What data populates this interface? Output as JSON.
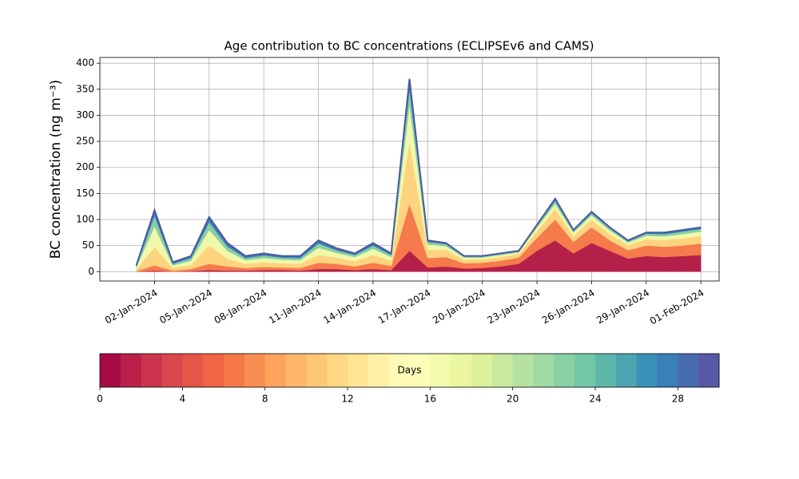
{
  "chart_data": {
    "type": "stacked-area",
    "title": "Age contribution to BC concentrations (ECLIPSEv6 and CAMS)",
    "ylabel": "BC concentration (ng m⁻³)",
    "x": [
      "01-Jan-2024",
      "02-Jan-2024",
      "03-Jan-2024",
      "04-Jan-2024",
      "05-Jan-2024",
      "06-Jan-2024",
      "07-Jan-2024",
      "08-Jan-2024",
      "09-Jan-2024",
      "10-Jan-2024",
      "11-Jan-2024",
      "12-Jan-2024",
      "13-Jan-2024",
      "14-Jan-2024",
      "15-Jan-2024",
      "16-Jan-2024",
      "17-Jan-2024",
      "18-Jan-2024",
      "19-Jan-2024",
      "20-Jan-2024",
      "21-Jan-2024",
      "22-Jan-2024",
      "23-Jan-2024",
      "24-Jan-2024",
      "25-Jan-2024",
      "26-Jan-2024",
      "27-Jan-2024",
      "28-Jan-2024",
      "29-Jan-2024",
      "30-Jan-2024",
      "31-Jan-2024",
      "01-Feb-2024"
    ],
    "series": [
      {
        "color": "#b5204a",
        "values": [
          0,
          2,
          0,
          1,
          3,
          2,
          2,
          3,
          3,
          2,
          5,
          5,
          3,
          5,
          3,
          40,
          8,
          10,
          6,
          7,
          10,
          15,
          40,
          60,
          35,
          55,
          40,
          25,
          30,
          28,
          30,
          32
        ]
      },
      {
        "color": "#f57a4c",
        "values": [
          1,
          10,
          2,
          4,
          12,
          8,
          5,
          6,
          5,
          5,
          12,
          10,
          7,
          12,
          8,
          90,
          18,
          18,
          10,
          10,
          11,
          12,
          25,
          40,
          22,
          30,
          20,
          16,
          20,
          20,
          20,
          22
        ]
      },
      {
        "color": "#fed37f",
        "values": [
          3,
          35,
          5,
          8,
          35,
          15,
          8,
          9,
          8,
          8,
          15,
          12,
          10,
          15,
          10,
          120,
          16,
          14,
          7,
          7,
          7,
          7,
          13,
          20,
          12,
          15,
          12,
          10,
          12,
          13,
          14,
          15
        ]
      },
      {
        "color": "#f0f8a9",
        "values": [
          4,
          40,
          5,
          8,
          30,
          15,
          7,
          8,
          7,
          7,
          14,
          9,
          8,
          12,
          7,
          70,
          10,
          7,
          4,
          3,
          4,
          3,
          7,
          10,
          6,
          8,
          7,
          5,
          7,
          7,
          8,
          8
        ]
      },
      {
        "color": "#88cfa4",
        "values": [
          2,
          20,
          3,
          5,
          15,
          8,
          4,
          5,
          4,
          4,
          8,
          5,
          4,
          6,
          4,
          30,
          5,
          4,
          2,
          2,
          2,
          2,
          3,
          6,
          3,
          4,
          4,
          2,
          4,
          4,
          5,
          5
        ]
      },
      {
        "color": "#3d7db7",
        "values": [
          2,
          11,
          3,
          4,
          10,
          7,
          4,
          4,
          3,
          4,
          6,
          4,
          3,
          5,
          3,
          20,
          3,
          2,
          1,
          1,
          1,
          1,
          2,
          4,
          2,
          3,
          2,
          2,
          2,
          3,
          3,
          3
        ]
      }
    ],
    "outline_color": "#4a5aa0",
    "xlim": [
      "30-Dec-2023",
      "02-Feb-2024"
    ],
    "xticks": [
      "02-Jan-2024",
      "05-Jan-2024",
      "08-Jan-2024",
      "11-Jan-2024",
      "14-Jan-2024",
      "17-Jan-2024",
      "20-Jan-2024",
      "23-Jan-2024",
      "26-Jan-2024",
      "29-Jan-2024",
      "01-Feb-2024"
    ],
    "ylim": [
      -18,
      411
    ],
    "yticks": [
      0,
      50,
      100,
      150,
      200,
      250,
      300,
      350,
      400
    ],
    "grid": true,
    "colorbar": {
      "label": "Days",
      "lim": [
        0,
        30
      ],
      "ticks": [
        0,
        4,
        8,
        12,
        16,
        20,
        24,
        28
      ],
      "colormap": [
        "#9e0142",
        "#d53e4f",
        "#f46d43",
        "#fdae61",
        "#fee08b",
        "#ffffbf",
        "#e6f598",
        "#abdda4",
        "#66c2a5",
        "#3288bd",
        "#5e4fa2"
      ]
    }
  }
}
